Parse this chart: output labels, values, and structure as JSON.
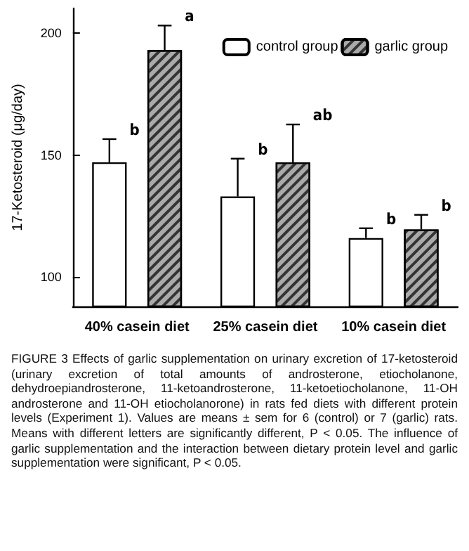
{
  "chart_data": {
    "type": "bar",
    "ylabel": "17-Ketosteroid (μg/day)",
    "categories": [
      "40% casein diet",
      "25% casein diet",
      "10% casein diet"
    ],
    "series": [
      {
        "name": "control group",
        "color": "#ffffff",
        "values": [
          147,
          133,
          116
        ],
        "errors": [
          9.5,
          15.5,
          4
        ]
      },
      {
        "name": "garlic group",
        "color": "#aaaaaa",
        "values": [
          193,
          147,
          119.5
        ],
        "errors": [
          10,
          15.5,
          6
        ]
      }
    ],
    "ylim": [
      88,
      210
    ],
    "yticks": [
      100,
      150,
      200
    ],
    "grid": false,
    "legend": "top right",
    "annotations": [
      "b",
      "a",
      "b",
      "ab",
      "b",
      "b",
      "FIGURE 3    Effects of garlic supplementation on urinary excretion of 17-ketosteroid (urinary excretion of total amounts of androsterone, etiocholanone, dehydroepiandrosterone, 11-ketoandrosterone, 11-ketoetiocholanone, 11-OH androsterone and 11-OH etiocholanorone) in rats fed diets with different protein levels (Experiment 1). Values are means ± sem for 6 (control) or 7 (garlic) rats. Means with different letters are significantly different, P < 0.05. The influence of garlic supplementation and the interaction between dietary protein level and garlic supplementation were significant, P < 0.05."
    ]
  }
}
